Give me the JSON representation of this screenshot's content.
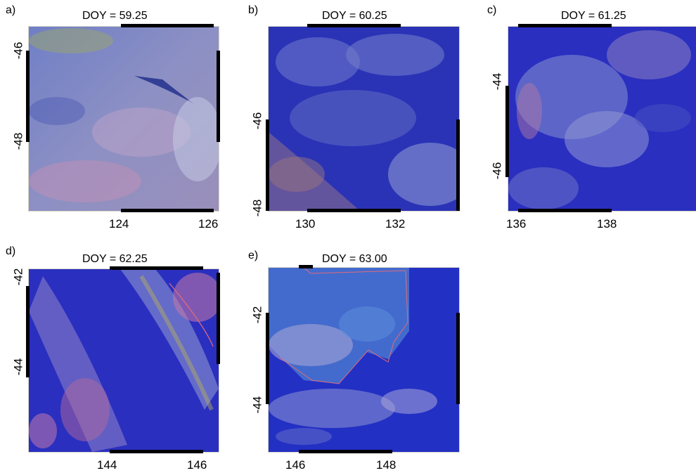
{
  "panels": [
    {
      "label": "a)",
      "title": "DOY = 59.25",
      "xticks": [
        "124",
        "126"
      ],
      "yticks": [
        "-46",
        "-48"
      ]
    },
    {
      "label": "b)",
      "title": "DOY = 60.25",
      "xticks": [
        "130",
        "132"
      ],
      "yticks": [
        "-46",
        "-48"
      ]
    },
    {
      "label": "c)",
      "title": "DOY = 61.25",
      "xticks": [
        "136",
        "138"
      ],
      "yticks": [
        "-44",
        "-46"
      ]
    },
    {
      "label": "d)",
      "title": "DOY = 62.25",
      "xticks": [
        "144",
        "146"
      ],
      "yticks": [
        "-42",
        "-44"
      ]
    },
    {
      "label": "e)",
      "title": "DOY = 63.00",
      "xticks": [
        "146",
        "148"
      ],
      "yticks": [
        "-42",
        "-44"
      ]
    }
  ],
  "colors": {
    "ocean": "#1f2fb8",
    "cloud": "#8f9bd4",
    "cloud_bright": "#c7c8e6",
    "pink": "#c27aa0",
    "frame": "#000000",
    "outline": "#e06b7a"
  }
}
